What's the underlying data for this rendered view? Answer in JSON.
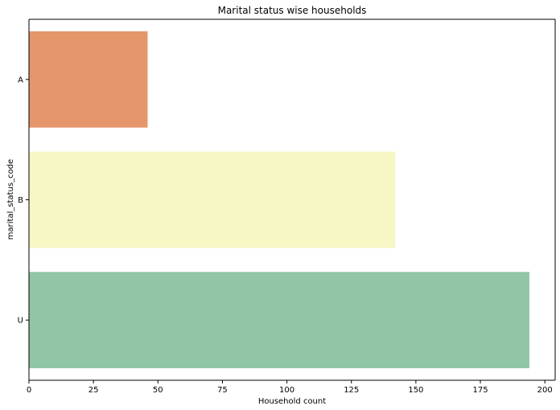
{
  "chart_data": {
    "type": "bar",
    "orientation": "horizontal",
    "title": "Marital status wise households",
    "xlabel": "Household count",
    "ylabel": "marital_status_code",
    "categories": [
      "A",
      "B",
      "U"
    ],
    "values": [
      46,
      142,
      194
    ],
    "colors": [
      "#e5966a",
      "#f7f6c5",
      "#90c5a5"
    ],
    "xlim": [
      0,
      204
    ],
    "xticks": [
      0,
      25,
      50,
      75,
      100,
      125,
      150,
      175,
      200
    ],
    "grid": false,
    "legend": "none"
  }
}
